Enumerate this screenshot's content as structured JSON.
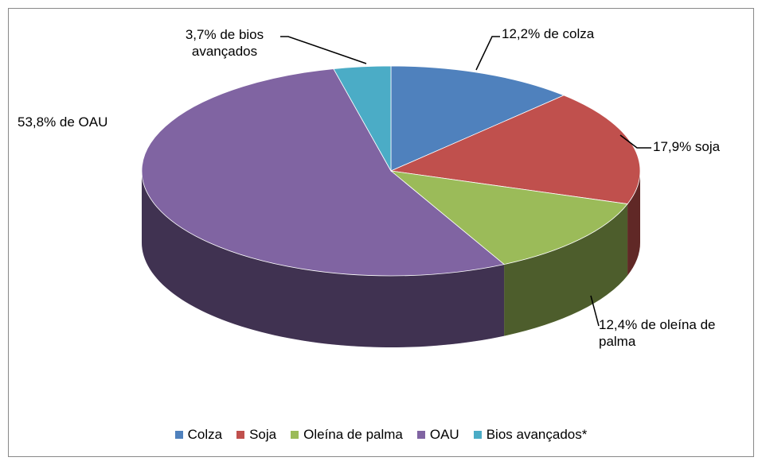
{
  "chart_data": {
    "type": "pie3d",
    "categories": [
      "Colza",
      "Soja",
      "Oleína de palma",
      "OAU",
      "Bios avançados*"
    ],
    "values": [
      12.2,
      17.9,
      12.4,
      53.8,
      3.7
    ],
    "value_labels": [
      "12,2% de colza",
      "17,9% soja",
      "12,4% de oleína de palma",
      "53,8% de OAU",
      "3,7% de bios avançados"
    ],
    "colors": [
      "#4f81bd",
      "#c0504d",
      "#9bbb59",
      "#8064a2",
      "#4bacc6"
    ],
    "legend": "bottom"
  }
}
